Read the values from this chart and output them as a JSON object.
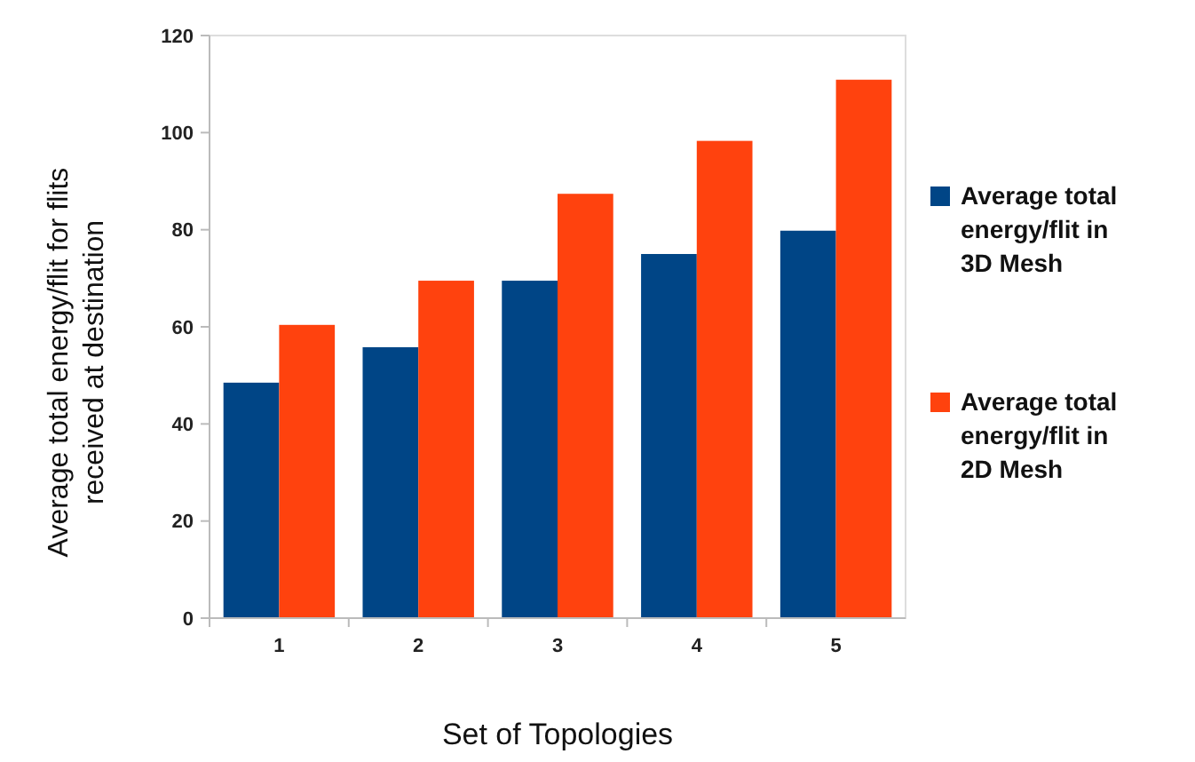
{
  "chart_data": {
    "type": "bar",
    "xlabel": "Set of Topologies",
    "ylabel": "Average total energy/flit for flits received at destination",
    "categories": [
      "1",
      "2",
      "3",
      "4",
      "5"
    ],
    "series": [
      {
        "name": "Average total energy/flit in 3D Mesh",
        "color": "#004586",
        "values": [
          48.5,
          55.8,
          69.5,
          75,
          79.8
        ]
      },
      {
        "name": "Average total energy/flit in 2D Mesh",
        "color": "#ff420e",
        "values": [
          60.4,
          69.5,
          87.4,
          98.3,
          110.9
        ]
      }
    ],
    "ylim": [
      0,
      120
    ],
    "yticks": [
      0,
      20,
      40,
      60,
      80,
      100,
      120
    ],
    "grid": false,
    "legend": "right"
  }
}
